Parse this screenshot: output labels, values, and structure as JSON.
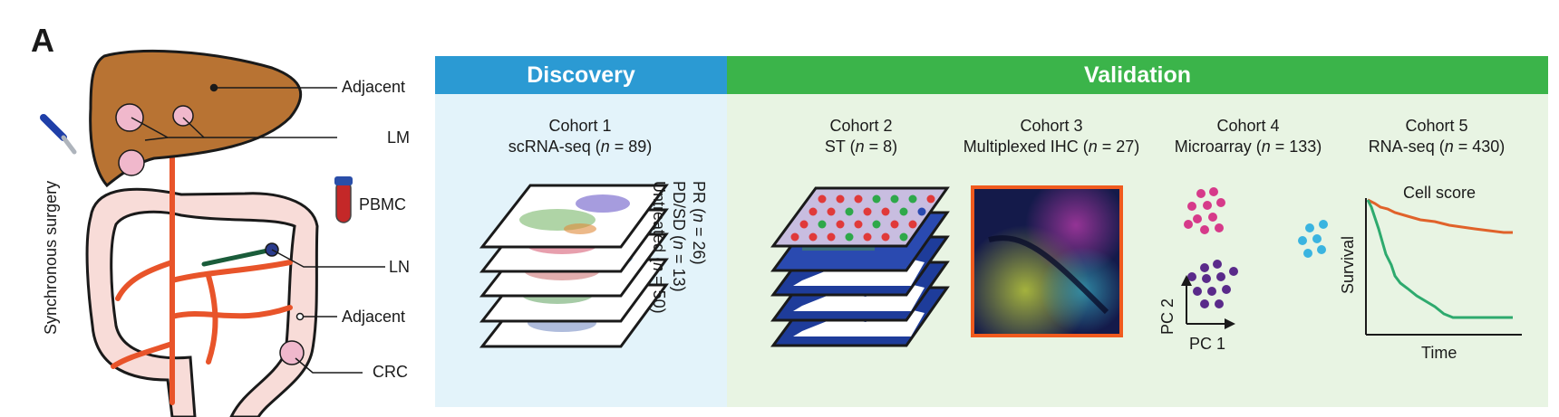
{
  "panel_label": "A",
  "anatomy": {
    "side_label": "Synchronous surgery",
    "labels": {
      "adjacent_liver": "Adjacent",
      "lm": "LM",
      "pbmc": "PBMC",
      "ln": "LN",
      "adjacent_colon": "Adjacent",
      "crc": "CRC"
    },
    "colors": {
      "liver": "#b87333",
      "colon": "#f8dcd8",
      "vessels": "#e8542a",
      "tumor": "#f0b8cc"
    }
  },
  "sections": {
    "discovery": {
      "title": "Discovery",
      "header_color": "#2b9ad3",
      "bg_color": "#e3f3fa"
    },
    "validation": {
      "title": "Validation",
      "header_color": "#3bb44a",
      "bg_color": "#e8f4e3"
    }
  },
  "cohorts": [
    {
      "name": "Cohort 1",
      "assay": "scRNA-seq",
      "n": "89"
    },
    {
      "name": "Cohort 2",
      "assay": "ST",
      "n": "8"
    },
    {
      "name": "Cohort 3",
      "assay": "Multiplexed IHC",
      "n": "27"
    },
    {
      "name": "Cohort 4",
      "assay": "Microarray",
      "n": "133"
    },
    {
      "name": "Cohort 5",
      "assay": "RNA-seq",
      "n": "430"
    }
  ],
  "cohort1_groups": [
    {
      "label": "PR",
      "n": "26"
    },
    {
      "label": "PD/SD",
      "n": "13"
    },
    {
      "label": "Untreated",
      "n": "50"
    }
  ],
  "pca": {
    "x_label": "PC 1",
    "y_label": "PC 2"
  },
  "survival": {
    "title": "Cell score",
    "x_label": "Time",
    "y_label": "Survival",
    "high_color": "#e0622a",
    "low_color": "#2eaa6e"
  }
}
